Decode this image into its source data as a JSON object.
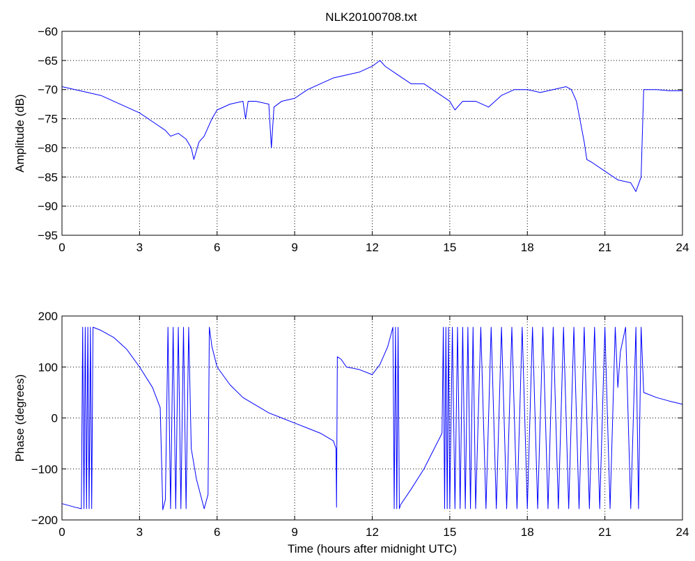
{
  "figure": {
    "title": "NLK20100708.txt",
    "trace_color": "#0000ff"
  },
  "chart_data": [
    {
      "type": "line",
      "title": "NLK20100708.txt",
      "xlabel": "",
      "ylabel": "Amplitude (dB)",
      "xlim": [
        0,
        24
      ],
      "ylim": [
        -95,
        -60
      ],
      "xticks": [
        0,
        3,
        6,
        9,
        12,
        15,
        18,
        21,
        24
      ],
      "yticks": [
        -95,
        -90,
        -85,
        -80,
        -75,
        -70,
        -65,
        -60
      ],
      "grid": true,
      "series": [
        {
          "x": [
            0,
            0.5,
            1.0,
            1.5,
            2.0,
            2.5,
            3.0,
            3.5,
            4.0,
            4.2,
            4.5,
            4.8,
            5.0,
            5.1,
            5.3,
            5.5,
            5.8,
            6.0,
            6.5,
            7.0,
            7.1,
            7.2,
            7.5,
            8.0,
            8.1,
            8.2,
            8.5,
            9.0,
            9.5,
            10.0,
            10.5,
            11.0,
            11.5,
            12.0,
            12.3,
            12.5,
            13.0,
            13.5,
            14.0,
            14.5,
            15.0,
            15.2,
            15.5,
            16.0,
            16.5,
            17.0,
            17.5,
            18.0,
            18.5,
            19.0,
            19.5,
            19.7,
            19.9,
            20.2,
            20.3,
            20.5,
            21.0,
            21.5,
            22.0,
            22.2,
            22.4,
            22.5,
            23.0,
            23.5,
            24.0
          ],
          "y": [
            -69.5,
            -70,
            -70.5,
            -71,
            -72,
            -73,
            -74,
            -75.5,
            -77,
            -78,
            -77.5,
            -78.5,
            -80,
            -82,
            -79,
            -78,
            -75,
            -73.5,
            -72.5,
            -72,
            -75,
            -72,
            -72,
            -72.5,
            -80,
            -73,
            -72,
            -71.5,
            -70,
            -69,
            -68,
            -67.5,
            -67,
            -66,
            -65,
            -66,
            -67.5,
            -69,
            -69,
            -70.5,
            -72,
            -73.5,
            -72,
            -72,
            -73,
            -71,
            -70,
            -70,
            -70.5,
            -70,
            -69.5,
            -70,
            -72,
            -79,
            -82,
            -82.5,
            -84,
            -85.5,
            -86,
            -87.5,
            -85,
            -70,
            -70,
            -70.2,
            -70.2
          ]
        }
      ]
    },
    {
      "type": "line",
      "title": "",
      "xlabel": "Time (hours after midnight UTC)",
      "ylabel": "Phase (degrees)",
      "xlim": [
        0,
        24
      ],
      "ylim": [
        -200,
        200
      ],
      "xticks": [
        0,
        3,
        6,
        9,
        12,
        15,
        18,
        21,
        24
      ],
      "yticks": [
        -200,
        -100,
        0,
        100,
        200
      ],
      "grid": true,
      "series": [
        {
          "x": [
            0,
            0.5,
            0.75,
            0.8,
            0.85,
            0.9,
            0.95,
            1.0,
            1.05,
            1.1,
            1.15,
            1.2,
            1.5,
            2.0,
            2.5,
            3.0,
            3.5,
            3.8,
            3.9,
            4.0,
            4.1,
            4.2,
            4.3,
            4.4,
            4.5,
            4.6,
            4.7,
            4.8,
            4.9,
            5.0,
            5.2,
            5.5,
            5.65,
            5.7,
            5.8,
            6.0,
            6.5,
            7.0,
            7.5,
            8.0,
            8.5,
            9.0,
            9.5,
            10.0,
            10.5,
            10.6,
            10.62,
            10.65,
            10.8,
            11.0,
            11.5,
            12.0,
            12.3,
            12.6,
            12.8,
            12.85,
            12.9,
            12.95,
            13.0,
            13.05,
            13.1,
            13.5,
            14.0,
            14.5,
            14.7,
            14.75,
            14.8,
            14.85,
            14.9,
            14.95,
            15.0,
            15.1,
            15.2,
            15.3,
            15.4,
            15.5,
            15.6,
            15.7,
            15.8,
            15.9,
            16.0,
            16.2,
            16.4,
            16.6,
            16.8,
            17.0,
            17.2,
            17.4,
            17.6,
            17.8,
            18.0,
            18.2,
            18.4,
            18.6,
            18.8,
            19.0,
            19.2,
            19.4,
            19.6,
            19.8,
            20.0,
            20.2,
            20.4,
            20.6,
            20.8,
            21.0,
            21.2,
            21.4,
            21.5,
            21.6,
            21.8,
            22.0,
            22.2,
            22.3,
            22.4,
            22.5,
            23.0,
            23.5,
            24.0
          ],
          "y": [
            -168,
            -175,
            -178,
            178,
            -178,
            178,
            -178,
            178,
            -178,
            178,
            -178,
            178,
            172,
            158,
            135,
            100,
            60,
            20,
            -180,
            -160,
            178,
            -178,
            178,
            -178,
            178,
            -178,
            178,
            -178,
            178,
            -60,
            -120,
            -178,
            -150,
            178,
            140,
            100,
            65,
            40,
            25,
            10,
            0,
            -10,
            -20,
            -30,
            -45,
            -60,
            -175,
            120,
            115,
            100,
            95,
            85,
            105,
            140,
            178,
            -178,
            178,
            -178,
            178,
            -178,
            -170,
            -140,
            -100,
            -50,
            -30,
            178,
            -178,
            178,
            -178,
            178,
            -178,
            178,
            -178,
            178,
            -178,
            178,
            -178,
            178,
            -178,
            178,
            -178,
            178,
            -178,
            178,
            -178,
            178,
            -178,
            178,
            -178,
            178,
            -178,
            178,
            -178,
            178,
            -178,
            178,
            -178,
            178,
            -178,
            178,
            -178,
            178,
            -178,
            178,
            -178,
            178,
            -178,
            178,
            60,
            130,
            178,
            -178,
            178,
            -178,
            178,
            50,
            40,
            33,
            27
          ]
        }
      ]
    }
  ]
}
